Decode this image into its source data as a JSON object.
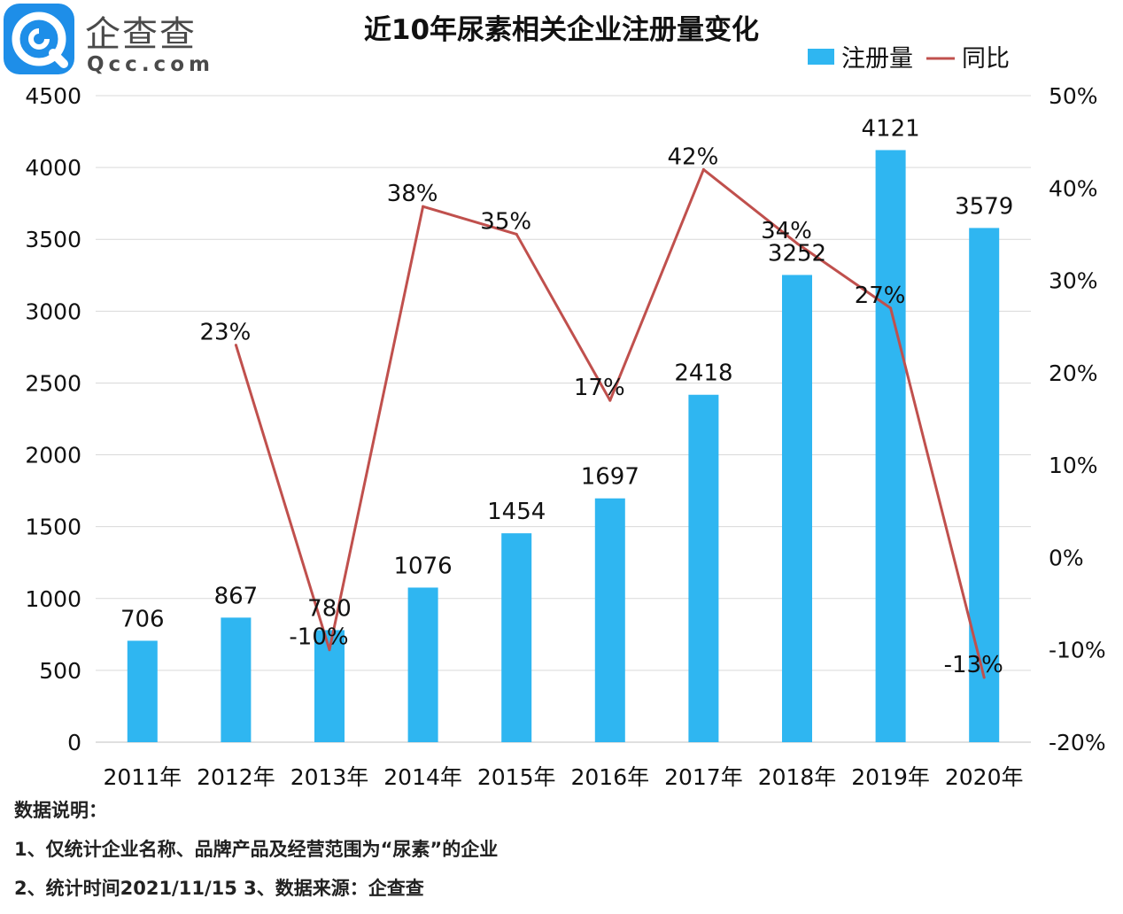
{
  "logo": {
    "name": "企查查",
    "domain": "Qcc.com"
  },
  "chart_data": {
    "type": "bar",
    "title": "近10年尿素相关企业注册量变化",
    "categories": [
      "2011年",
      "2012年",
      "2013年",
      "2014年",
      "2015年",
      "2016年",
      "2017年",
      "2018年",
      "2019年",
      "2020年"
    ],
    "series": [
      {
        "name": "注册量",
        "kind": "bar",
        "axis": "left",
        "color": "#2fb6f1",
        "values": [
          706,
          867,
          780,
          1076,
          1454,
          1697,
          2418,
          3252,
          4121,
          3579
        ],
        "labels": [
          "706",
          "867",
          "780",
          "1076",
          "1454",
          "1697",
          "2418",
          "3252",
          "4121",
          "3579"
        ]
      },
      {
        "name": "同比",
        "kind": "line",
        "axis": "right",
        "color": "#c0504d",
        "values": [
          null,
          23,
          -10,
          38,
          35,
          17,
          42,
          34,
          27,
          -13
        ],
        "labels": [
          null,
          "23%",
          "-10%",
          "38%",
          "35%",
          "17%",
          "42%",
          "34%",
          "27%",
          "-13%"
        ]
      }
    ],
    "y_left": {
      "min": 0,
      "max": 4500,
      "step": 500,
      "ticks": [
        "0",
        "500",
        "1000",
        "1500",
        "2000",
        "2500",
        "3000",
        "3500",
        "4000",
        "4500"
      ]
    },
    "y_right": {
      "min": -20,
      "max": 50,
      "step": 10,
      "ticks": [
        "-20%",
        "-10%",
        "0%",
        "10%",
        "20%",
        "30%",
        "40%",
        "50%"
      ]
    },
    "legend": {
      "position": "top-right",
      "items": [
        "注册量",
        "同比"
      ]
    },
    "grid": true
  },
  "notes": {
    "heading": "数据说明：",
    "line1": "1、仅统计企业名称、品牌产品及经营范围为“尿素”的企业",
    "line2": "2、统计时间2021/11/15   3、数据来源：企查查"
  }
}
